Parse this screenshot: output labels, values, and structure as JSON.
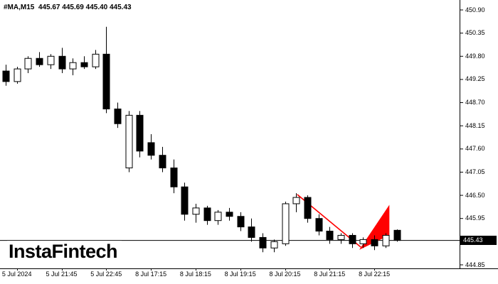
{
  "header": {
    "text": "#MA,M15  445.67 445.69 445.40 445.43"
  },
  "logo": {
    "text": "InstaFintech"
  },
  "colors": {
    "background": "#ffffff",
    "bull_fill": "#ffffff",
    "bear_fill": "#000000",
    "candle_outline": "#000000",
    "wick": "#000000",
    "axis_line": "#000000",
    "text": "#000000",
    "current_price_line": "#000000",
    "annotation": "#ff0000",
    "badge_bg": "#000000",
    "badge_text": "#ffffff"
  },
  "chart_data": {
    "type": "candlestick",
    "symbol": "#MA",
    "timeframe": "M15",
    "title": "#MA,M15",
    "current_ohlc": {
      "open": 445.67,
      "high": 445.69,
      "low": 445.4,
      "close": 445.43
    },
    "current_price": 445.43,
    "current_price_label": "445.43",
    "grid": false,
    "y_axis": {
      "min": 444.85,
      "max": 450.9,
      "tick_step": 0.55,
      "ticks": [
        450.9,
        450.35,
        449.8,
        449.25,
        448.7,
        448.15,
        447.6,
        447.05,
        446.5,
        445.95,
        444.85
      ]
    },
    "x_axis": {
      "labels": [
        {
          "text": "5 Jul 2024",
          "candle_index": 1
        },
        {
          "text": "5 Jul 21:45",
          "candle_index": 5
        },
        {
          "text": "5 Jul 22:45",
          "candle_index": 9
        },
        {
          "text": "8 Jul 17:15",
          "candle_index": 13
        },
        {
          "text": "8 Jul 18:15",
          "candle_index": 17
        },
        {
          "text": "8 Jul 19:15",
          "candle_index": 21
        },
        {
          "text": "8 Jul 20:15",
          "candle_index": 25
        },
        {
          "text": "8 Jul 21:15",
          "candle_index": 29
        },
        {
          "text": "8 Jul 22:15",
          "candle_index": 33
        }
      ]
    },
    "candles": [
      {
        "o": 449.45,
        "h": 449.6,
        "l": 449.1,
        "c": 449.2
      },
      {
        "o": 449.2,
        "h": 449.55,
        "l": 449.15,
        "c": 449.5
      },
      {
        "o": 449.5,
        "h": 449.8,
        "l": 449.4,
        "c": 449.75
      },
      {
        "o": 449.75,
        "h": 449.9,
        "l": 449.55,
        "c": 449.6
      },
      {
        "o": 449.6,
        "h": 449.85,
        "l": 449.5,
        "c": 449.8
      },
      {
        "o": 449.8,
        "h": 450.0,
        "l": 449.4,
        "c": 449.5
      },
      {
        "o": 449.5,
        "h": 449.75,
        "l": 449.35,
        "c": 449.65
      },
      {
        "o": 449.65,
        "h": 449.8,
        "l": 449.5,
        "c": 449.55
      },
      {
        "o": 449.55,
        "h": 449.95,
        "l": 449.5,
        "c": 449.85
      },
      {
        "o": 449.85,
        "h": 450.5,
        "l": 448.45,
        "c": 448.55
      },
      {
        "o": 448.55,
        "h": 448.7,
        "l": 448.1,
        "c": 448.2
      },
      {
        "o": 447.15,
        "h": 448.5,
        "l": 447.05,
        "c": 448.4
      },
      {
        "o": 448.4,
        "h": 448.5,
        "l": 447.4,
        "c": 447.55
      },
      {
        "o": 447.75,
        "h": 447.95,
        "l": 447.35,
        "c": 447.45
      },
      {
        "o": 447.45,
        "h": 447.65,
        "l": 447.05,
        "c": 447.15
      },
      {
        "o": 447.15,
        "h": 447.35,
        "l": 446.55,
        "c": 446.7
      },
      {
        "o": 446.7,
        "h": 446.8,
        "l": 445.9,
        "c": 446.05
      },
      {
        "o": 446.05,
        "h": 446.3,
        "l": 445.85,
        "c": 446.2
      },
      {
        "o": 446.2,
        "h": 446.25,
        "l": 445.8,
        "c": 445.9
      },
      {
        "o": 445.9,
        "h": 446.15,
        "l": 445.8,
        "c": 446.1
      },
      {
        "o": 446.1,
        "h": 446.2,
        "l": 445.9,
        "c": 446.0
      },
      {
        "o": 446.0,
        "h": 446.1,
        "l": 445.65,
        "c": 445.75
      },
      {
        "o": 445.75,
        "h": 445.95,
        "l": 445.4,
        "c": 445.5
      },
      {
        "o": 445.5,
        "h": 445.6,
        "l": 445.15,
        "c": 445.25
      },
      {
        "o": 445.25,
        "h": 445.45,
        "l": 445.15,
        "c": 445.4
      },
      {
        "o": 445.35,
        "h": 446.35,
        "l": 445.3,
        "c": 446.3
      },
      {
        "o": 446.3,
        "h": 446.55,
        "l": 446.1,
        "c": 446.45
      },
      {
        "o": 446.45,
        "h": 446.5,
        "l": 445.85,
        "c": 445.95
      },
      {
        "o": 445.95,
        "h": 446.05,
        "l": 445.55,
        "c": 445.65
      },
      {
        "o": 445.65,
        "h": 445.75,
        "l": 445.35,
        "c": 445.45
      },
      {
        "o": 445.45,
        "h": 445.6,
        "l": 445.35,
        "c": 445.55
      },
      {
        "o": 445.55,
        "h": 445.6,
        "l": 445.25,
        "c": 445.35
      },
      {
        "o": 445.35,
        "h": 445.5,
        "l": 445.25,
        "c": 445.45
      },
      {
        "o": 445.45,
        "h": 445.55,
        "l": 445.2,
        "c": 445.3
      },
      {
        "o": 445.3,
        "h": 445.6,
        "l": 445.25,
        "c": 445.55
      },
      {
        "o": 445.67,
        "h": 445.69,
        "l": 445.4,
        "c": 445.43
      }
    ],
    "annotation": {
      "name": "red-trend-arrow",
      "color": "#ff0000",
      "line_points": [
        [
          26.1,
          446.52
        ],
        [
          31.8,
          445.27
        ]
      ],
      "arrow_polygon": [
        [
          31.8,
          445.24
        ],
        [
          34.3,
          446.23
        ],
        [
          34.3,
          445.56
        ]
      ]
    }
  }
}
